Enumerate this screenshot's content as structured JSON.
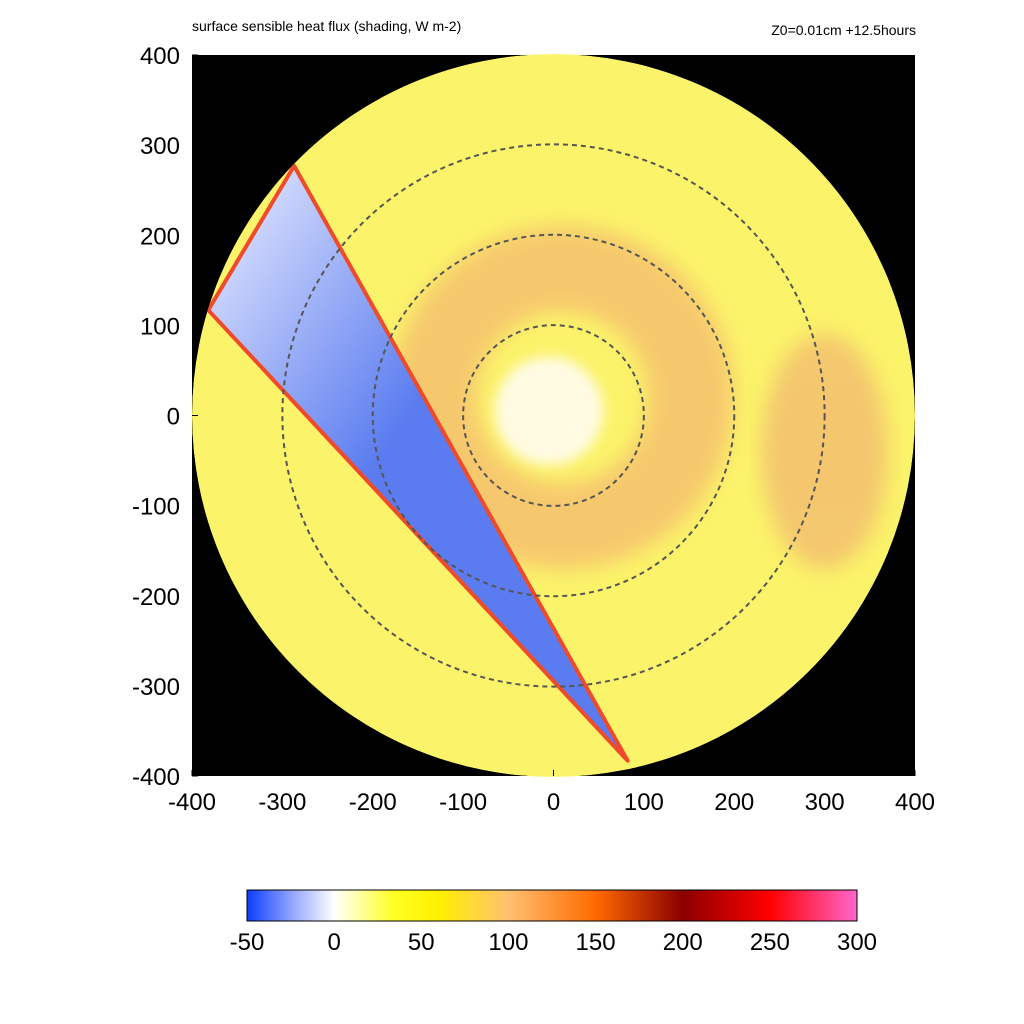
{
  "chart_data": {
    "type": "heatmap",
    "title": "surface sensible heat flux (shading, W m-2)",
    "subtitle": "Z0=0.01cm  +12.5hours",
    "xlabel": "",
    "ylabel": "",
    "xlim": [
      -400,
      400
    ],
    "ylim": [
      -400,
      400
    ],
    "x_ticks": [
      "-400",
      "-300",
      "-200",
      "-100",
      "0",
      "100",
      "200",
      "300",
      "400"
    ],
    "y_ticks": [
      "400",
      "300",
      "200",
      "100",
      "0",
      "-100",
      "-200",
      "-300",
      "-400"
    ],
    "x_tick_values": [
      -400,
      -300,
      -200,
      -100,
      0,
      100,
      200,
      300,
      400
    ],
    "y_tick_values": [
      400,
      300,
      200,
      100,
      0,
      -100,
      -200,
      -300,
      -400
    ],
    "domain_radius": 400,
    "range_rings": [
      100,
      200,
      300
    ],
    "ring_color": "#555555",
    "outside_color": "#000000",
    "background_flux_color": "#fbf36a",
    "cold_wedge": {
      "color_light": "#eef0ff",
      "color_dark": "#5a7cf0",
      "edge_color": "#ef4a2a",
      "polygon": [
        [
          -287,
          277
        ],
        [
          -382,
          117
        ],
        [
          82,
          -383
        ]
      ]
    },
    "warm_regions": [
      {
        "label": "eyewall ring",
        "x": 10,
        "y": 20,
        "r_inner": 95,
        "r_outer": 190,
        "color": "#f6c46e"
      },
      {
        "label": "outer band",
        "x": 300,
        "y": -40,
        "rx": 70,
        "ry": 130,
        "color": "#f3c070"
      },
      {
        "label": "eye",
        "x": -5,
        "y": 5,
        "r": 60,
        "color": "#fffbe3"
      }
    ],
    "colorbar": {
      "min": -50,
      "max": 300,
      "ticks": [
        "-50",
        "0",
        "50",
        "100",
        "150",
        "200",
        "250",
        "300"
      ],
      "tick_values": [
        -50,
        0,
        50,
        100,
        150,
        200,
        250,
        300
      ],
      "stops": [
        {
          "v": -50,
          "color": "#0a3dff"
        },
        {
          "v": -25,
          "color": "#8fa2ff"
        },
        {
          "v": 0,
          "color": "#ffffff"
        },
        {
          "v": 35,
          "color": "#ffff20"
        },
        {
          "v": 60,
          "color": "#fff000"
        },
        {
          "v": 100,
          "color": "#ffc070"
        },
        {
          "v": 150,
          "color": "#ff6a00"
        },
        {
          "v": 200,
          "color": "#8a0000"
        },
        {
          "v": 250,
          "color": "#ff0000"
        },
        {
          "v": 300,
          "color": "#ff66cc"
        }
      ]
    }
  }
}
